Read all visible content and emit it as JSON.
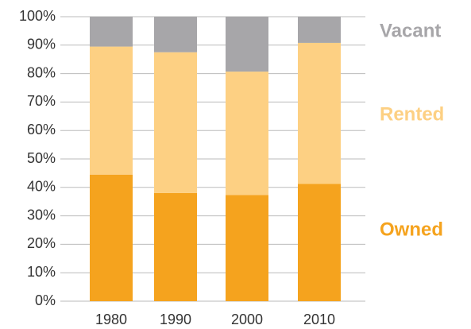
{
  "chart_data": {
    "type": "stacked_bar",
    "categories": [
      "1980",
      "1990",
      "2000",
      "2010"
    ],
    "series": [
      {
        "name": "Owned",
        "color": "#f5a31e",
        "values": [
          44.5,
          38,
          37.3,
          41.2
        ]
      },
      {
        "name": "Rented",
        "color": "#fdd083",
        "values": [
          45,
          49.5,
          43.4,
          49.6
        ]
      },
      {
        "name": "Vacant",
        "color": "#a7a6a9",
        "values": [
          10.5,
          12.5,
          19.3,
          9.2
        ]
      }
    ],
    "ylim": [
      0,
      100
    ],
    "yticks": [
      {
        "value": 0,
        "label": "0%"
      },
      {
        "value": 10,
        "label": "10%"
      },
      {
        "value": 20,
        "label": "20%"
      },
      {
        "value": 30,
        "label": "30%"
      },
      {
        "value": 40,
        "label": "40%"
      },
      {
        "value": 50,
        "label": "50%"
      },
      {
        "value": 60,
        "label": "60%"
      },
      {
        "value": 70,
        "label": "70%"
      },
      {
        "value": 80,
        "label": "80%"
      },
      {
        "value": 90,
        "label": "90%"
      },
      {
        "value": 100,
        "label": "100%"
      }
    ],
    "grid": true
  }
}
